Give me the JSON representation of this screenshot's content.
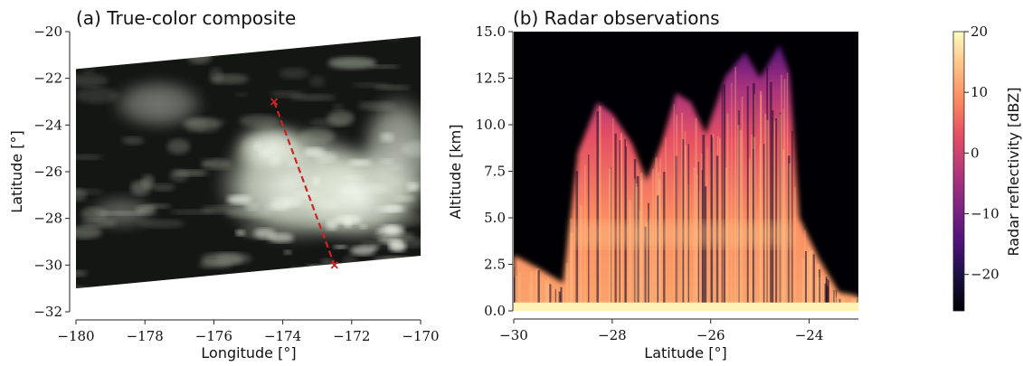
{
  "chart_data": [
    {
      "type": "heatmap",
      "panel": "a",
      "title": "(a) True-color composite",
      "xlabel": "Longitude [°]",
      "ylabel": "Latitude [°]",
      "xlim": [
        -180,
        -170
      ],
      "ylim": [
        -32,
        -20
      ],
      "xticks": [
        -180,
        -178,
        -176,
        -174,
        -172,
        -170
      ],
      "yticks": [
        -20,
        -22,
        -24,
        -26,
        -28,
        -30,
        -32
      ],
      "swath_corners": [
        {
          "lon": -180.0,
          "lat": -21.6
        },
        {
          "lon": -170.0,
          "lat": -20.2
        },
        {
          "lon": -170.0,
          "lat": -29.6
        },
        {
          "lon": -180.0,
          "lat": -31.0
        }
      ],
      "track": {
        "color": "#cc2222",
        "points": [
          {
            "lon": -174.25,
            "lat": -23.0
          },
          {
            "lon": -172.5,
            "lat": -30.0
          }
        ]
      },
      "grid": false
    },
    {
      "type": "heatmap",
      "panel": "b",
      "title": "(b) Radar observations",
      "xlabel": "Latitude [°]",
      "ylabel": "Altitude [km]",
      "xlim": [
        -30,
        -23
      ],
      "ylim": [
        0,
        15
      ],
      "xticks": [
        -30,
        -28,
        -26,
        -24
      ],
      "yticks": [
        0.0,
        2.5,
        5.0,
        7.5,
        10.0,
        12.5,
        15.0
      ],
      "colormap": "magma",
      "cloud_top_profile": [
        {
          "lat": -30.0,
          "top_km": 3.0
        },
        {
          "lat": -29.5,
          "top_km": 2.3
        },
        {
          "lat": -29.0,
          "top_km": 1.5
        },
        {
          "lat": -28.7,
          "top_km": 8.5
        },
        {
          "lat": -28.3,
          "top_km": 11.2
        },
        {
          "lat": -28.0,
          "top_km": 10.6
        },
        {
          "lat": -27.6,
          "top_km": 9.0
        },
        {
          "lat": -27.3,
          "top_km": 7.0
        },
        {
          "lat": -27.0,
          "top_km": 9.0
        },
        {
          "lat": -26.7,
          "top_km": 11.7
        },
        {
          "lat": -26.4,
          "top_km": 11.2
        },
        {
          "lat": -26.1,
          "top_km": 9.5
        },
        {
          "lat": -25.7,
          "top_km": 12.6
        },
        {
          "lat": -25.3,
          "top_km": 13.9
        },
        {
          "lat": -25.0,
          "top_km": 12.5
        },
        {
          "lat": -24.6,
          "top_km": 14.3
        },
        {
          "lat": -24.4,
          "top_km": 12.8
        },
        {
          "lat": -24.2,
          "top_km": 5.0
        },
        {
          "lat": -23.8,
          "top_km": 2.8
        },
        {
          "lat": -23.4,
          "top_km": 1.0
        },
        {
          "lat": -23.0,
          "top_km": 0.8
        }
      ],
      "grid": false
    }
  ],
  "colorbar": {
    "label": "Radar reflectivity [dBZ]",
    "range": [
      -26,
      20
    ],
    "ticks": [
      20,
      10,
      0,
      -10,
      -20
    ],
    "colormap": "magma"
  }
}
